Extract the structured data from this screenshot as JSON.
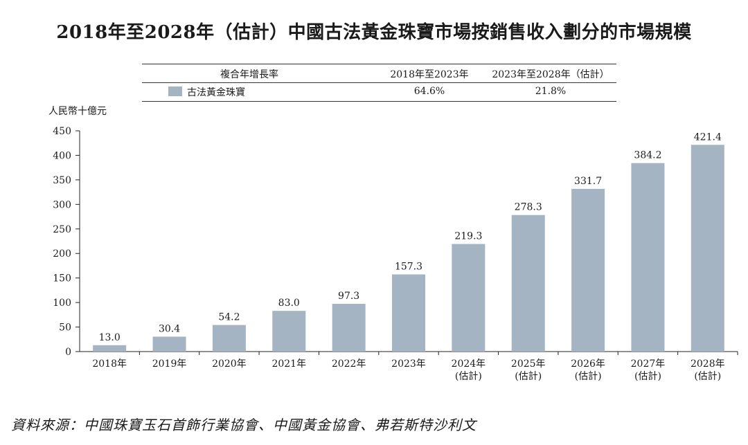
{
  "title": "2018年至2028年（估計）中國古法黃金珠寶市場按銷售收入劃分的市場規模",
  "cagr_table": {
    "header_label": "複合年增長率",
    "period_1": "2018年至2023年",
    "period_2": "2023年至2028年（估計）",
    "series_label": "古法黃金珠寶",
    "value_1": "64.6%",
    "value_2": "21.8%"
  },
  "unit_label": "人民幣十億元",
  "source": "資料來源：中國珠寶玉石首飾行業協會、中國黃金協會、弗若斯特沙利文",
  "colors": {
    "bar": "#a5b4c2",
    "axis": "#222222"
  },
  "chart_data": {
    "type": "bar",
    "title": "2018年至2028年（估計）中國古法黃金珠寶市場按銷售收入劃分的市場規模",
    "ylabel": "人民幣十億元",
    "xlabel": "",
    "ylim": [
      0,
      450
    ],
    "yticks": [
      0,
      50,
      100,
      150,
      200,
      250,
      300,
      350,
      400,
      450
    ],
    "categories": [
      "2018年",
      "2019年",
      "2020年",
      "2021年",
      "2022年",
      "2023年",
      "2024年",
      "2025年",
      "2026年",
      "2027年",
      "2028年"
    ],
    "category_notes": [
      "",
      "",
      "",
      "",
      "",
      "",
      "(估計)",
      "(估計)",
      "(估計)",
      "(估計)",
      "(估計)"
    ],
    "values": [
      13.0,
      30.4,
      54.2,
      83.0,
      97.3,
      157.3,
      219.3,
      278.3,
      331.7,
      384.2,
      421.4
    ],
    "value_labels": [
      "13.0",
      "30.4",
      "54.2",
      "83.0",
      "97.3",
      "157.3",
      "219.3",
      "278.3",
      "331.7",
      "384.2",
      "421.4"
    ],
    "series_name": "古法黃金珠寶"
  }
}
